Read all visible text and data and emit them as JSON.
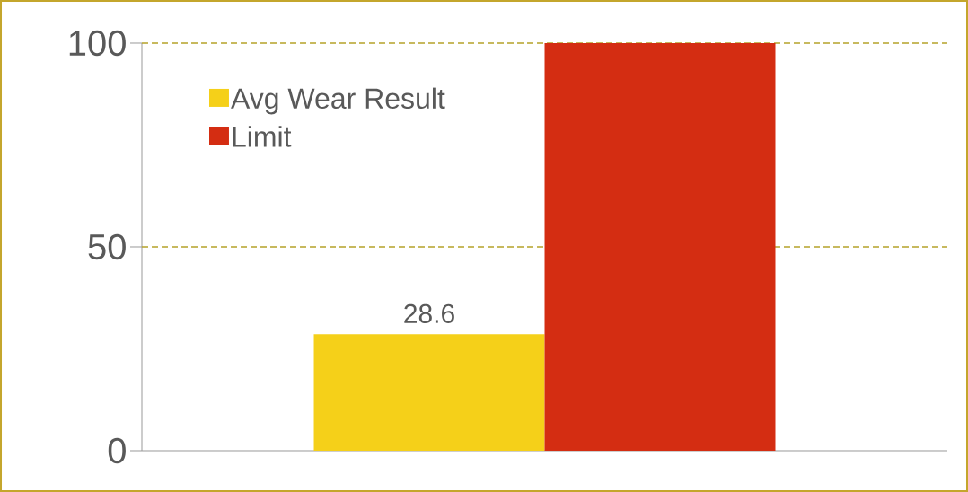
{
  "chart_data": {
    "type": "bar",
    "categories": [
      null
    ],
    "series": [
      {
        "name": "Avg Wear Result",
        "color": "#f5d019",
        "values": [
          28.6
        ],
        "value_labels": [
          "28.6"
        ]
      },
      {
        "name": "Limit",
        "color": "#d42d12",
        "values": [
          100
        ],
        "value_labels": [
          null
        ]
      }
    ],
    "ylim": [
      0,
      100
    ],
    "yticks": [
      0,
      50,
      100
    ],
    "legend": "top left",
    "ref_lines": [
      {
        "axis": "y",
        "value": 50,
        "color": "#b5a32a",
        "line_style": "dashed"
      },
      {
        "axis": "y",
        "value": 100,
        "color": "#b5a32a",
        "line_style": "dashed"
      }
    ]
  }
}
